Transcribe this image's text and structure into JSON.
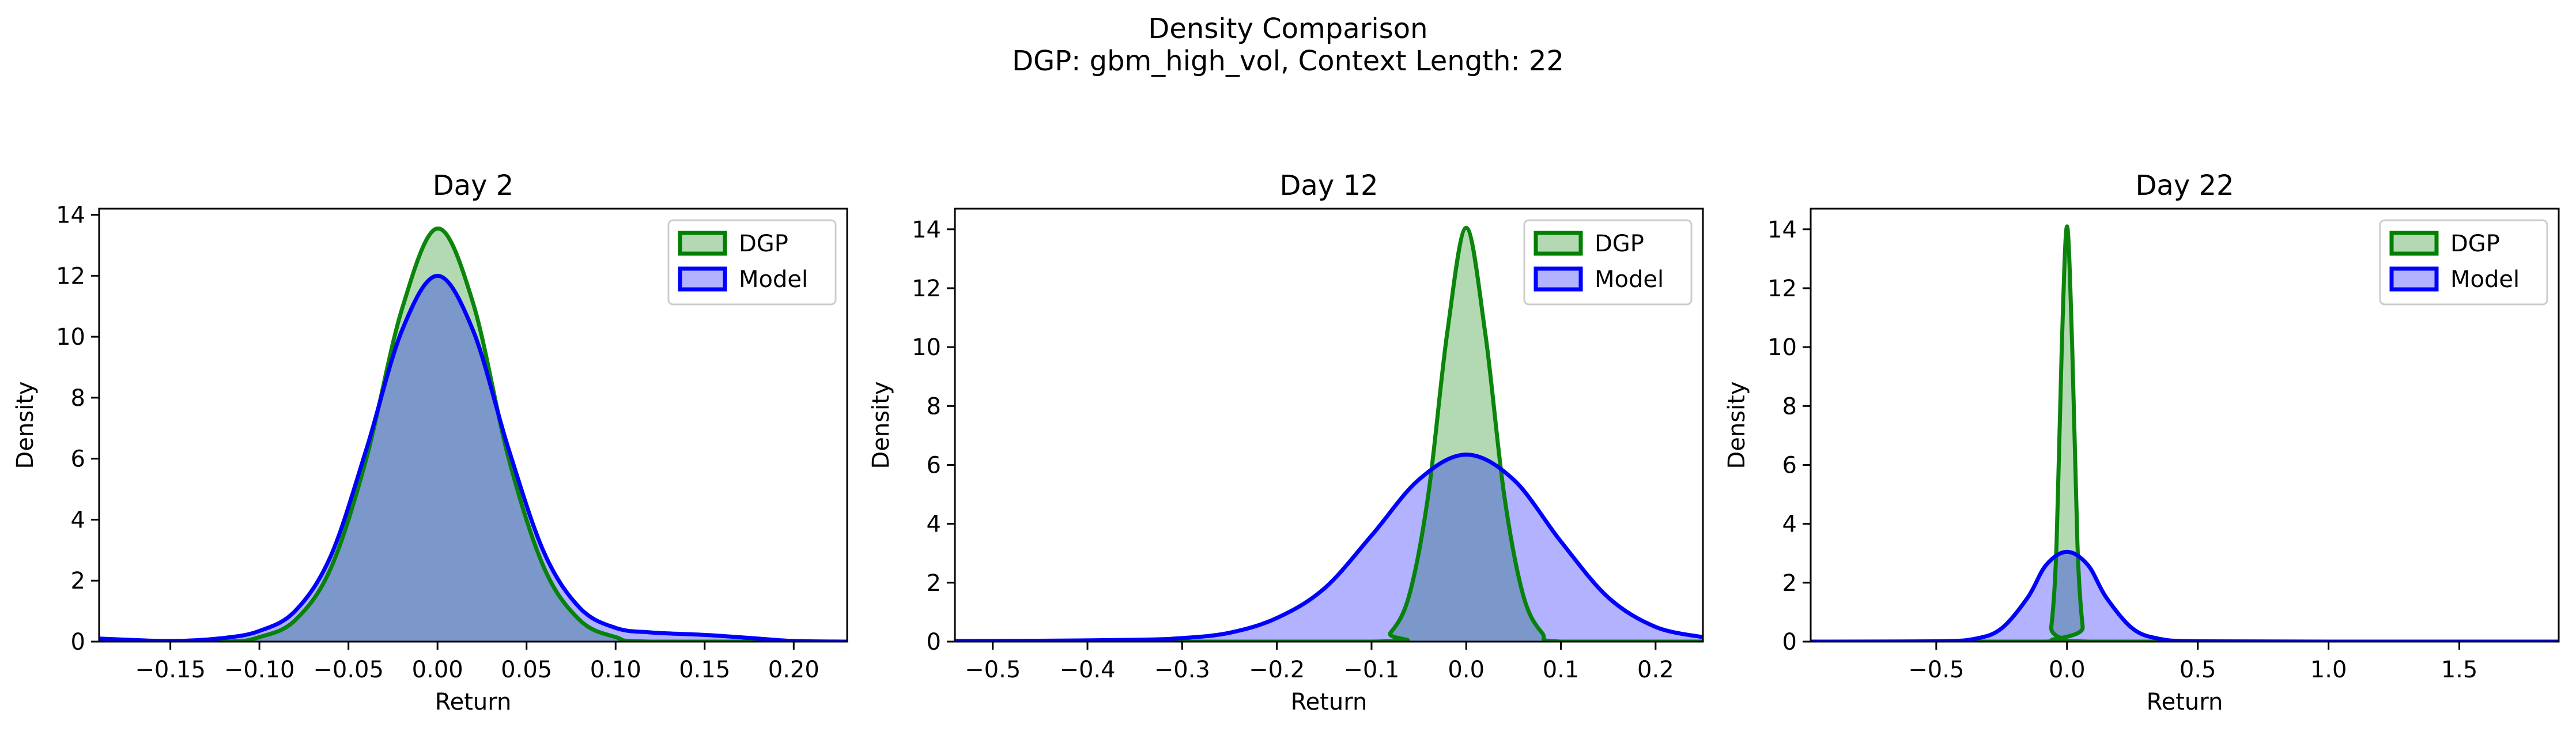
{
  "figure": {
    "title_line1": "Density Comparison",
    "title_line2": "DGP: gbm_high_vol, Context Length: 22"
  },
  "colors": {
    "dgp_line": "#008000",
    "dgp_fill": "#008000",
    "model_line": "#0000ff",
    "model_fill": "#0000ff"
  },
  "chart_data": [
    {
      "type": "area",
      "title": "Day 2",
      "xlabel": "Return",
      "ylabel": "Density",
      "xlim": [
        -0.19,
        0.23
      ],
      "ylim": [
        0,
        14.2
      ],
      "xticks": [
        -0.15,
        -0.1,
        -0.05,
        0.0,
        0.05,
        0.1,
        0.15,
        0.2
      ],
      "xtick_labels": [
        "−0.15",
        "−0.10",
        "−0.05",
        "0.00",
        "0.05",
        "0.10",
        "0.15",
        "0.20"
      ],
      "yticks": [
        0,
        2,
        4,
        6,
        8,
        10,
        12,
        14
      ],
      "ytick_labels": [
        "0",
        "2",
        "4",
        "6",
        "8",
        "10",
        "12",
        "14"
      ],
      "legend": {
        "location": "upper right",
        "entries": [
          "DGP",
          "Model"
        ]
      },
      "series": [
        {
          "name": "DGP",
          "x": [
            -0.19,
            -0.12,
            -0.1,
            -0.08,
            -0.06,
            -0.04,
            -0.02,
            0.0,
            0.02,
            0.04,
            0.06,
            0.08,
            0.1,
            0.12,
            0.23
          ],
          "y": [
            0,
            0,
            0.15,
            0.7,
            2.4,
            6.0,
            10.9,
            13.55,
            11.1,
            6.0,
            2.4,
            0.7,
            0.15,
            0,
            0
          ]
        },
        {
          "name": "Model",
          "x": [
            -0.19,
            -0.15,
            -0.12,
            -0.1,
            -0.08,
            -0.06,
            -0.04,
            -0.02,
            0.0,
            0.02,
            0.04,
            0.06,
            0.08,
            0.1,
            0.12,
            0.15,
            0.18,
            0.2,
            0.23
          ],
          "y": [
            0.1,
            0.02,
            0.12,
            0.35,
            1.0,
            2.8,
            6.3,
            10.2,
            12.0,
            10.2,
            6.3,
            2.9,
            1.1,
            0.45,
            0.3,
            0.22,
            0.1,
            0.02,
            0
          ]
        }
      ]
    },
    {
      "type": "area",
      "title": "Day 12",
      "xlabel": "Return",
      "ylabel": "Density",
      "xlim": [
        -0.54,
        0.25
      ],
      "ylim": [
        0,
        14.7
      ],
      "xticks": [
        -0.5,
        -0.4,
        -0.3,
        -0.2,
        -0.1,
        0.0,
        0.1,
        0.2
      ],
      "xtick_labels": [
        "−0.5",
        "−0.4",
        "−0.3",
        "−0.2",
        "−0.1",
        "0.0",
        "0.1",
        "0.2"
      ],
      "yticks": [
        0,
        2,
        4,
        6,
        8,
        10,
        12,
        14
      ],
      "ytick_labels": [
        "0",
        "2",
        "4",
        "6",
        "8",
        "10",
        "12",
        "14"
      ],
      "legend": {
        "location": "upper right",
        "entries": [
          "DGP",
          "Model"
        ]
      },
      "series": [
        {
          "name": "DGP",
          "x": [
            -0.54,
            -0.1,
            -0.08,
            -0.06,
            -0.04,
            -0.02,
            0.0,
            0.02,
            0.04,
            0.06,
            0.08,
            0.1,
            0.25
          ],
          "y": [
            0,
            0,
            0.3,
            1.6,
            5.0,
            10.5,
            14.05,
            10.5,
            5.0,
            1.6,
            0.3,
            0,
            0
          ]
        },
        {
          "name": "Model",
          "x": [
            -0.54,
            -0.45,
            -0.35,
            -0.3,
            -0.25,
            -0.2,
            -0.15,
            -0.1,
            -0.05,
            0.0,
            0.05,
            0.1,
            0.15,
            0.2,
            0.25
          ],
          "y": [
            0.02,
            0.03,
            0.06,
            0.12,
            0.3,
            0.8,
            1.8,
            3.6,
            5.5,
            6.35,
            5.5,
            3.4,
            1.5,
            0.5,
            0.15
          ]
        }
      ]
    },
    {
      "type": "area",
      "title": "Day 22",
      "xlabel": "Return",
      "ylabel": "Density",
      "xlim": [
        -0.98,
        1.88
      ],
      "ylim": [
        0,
        14.7
      ],
      "xticks": [
        -0.5,
        0.0,
        0.5,
        1.0,
        1.5
      ],
      "xtick_labels": [
        "−0.5",
        "0.0",
        "0.5",
        "1.0",
        "1.5"
      ],
      "yticks": [
        0,
        2,
        4,
        6,
        8,
        10,
        12,
        14
      ],
      "ytick_labels": [
        "0",
        "2",
        "4",
        "6",
        "8",
        "10",
        "12",
        "14"
      ],
      "legend": {
        "location": "upper right",
        "entries": [
          "DGP",
          "Model"
        ]
      },
      "series": [
        {
          "name": "DGP",
          "x": [
            -0.98,
            -0.08,
            -0.06,
            -0.04,
            -0.02,
            0.0,
            0.02,
            0.04,
            0.06,
            0.08,
            1.88
          ],
          "y": [
            0,
            0,
            0.5,
            3.3,
            10.0,
            14.1,
            10.0,
            3.3,
            0.5,
            0,
            0
          ]
        },
        {
          "name": "Model",
          "x": [
            -0.98,
            -0.5,
            -0.35,
            -0.25,
            -0.15,
            -0.08,
            0.0,
            0.08,
            0.15,
            0.25,
            0.35,
            0.5,
            1.0,
            1.88
          ],
          "y": [
            0,
            0.01,
            0.1,
            0.45,
            1.5,
            2.6,
            3.05,
            2.6,
            1.5,
            0.45,
            0.1,
            0.01,
            0,
            0
          ]
        }
      ]
    }
  ]
}
